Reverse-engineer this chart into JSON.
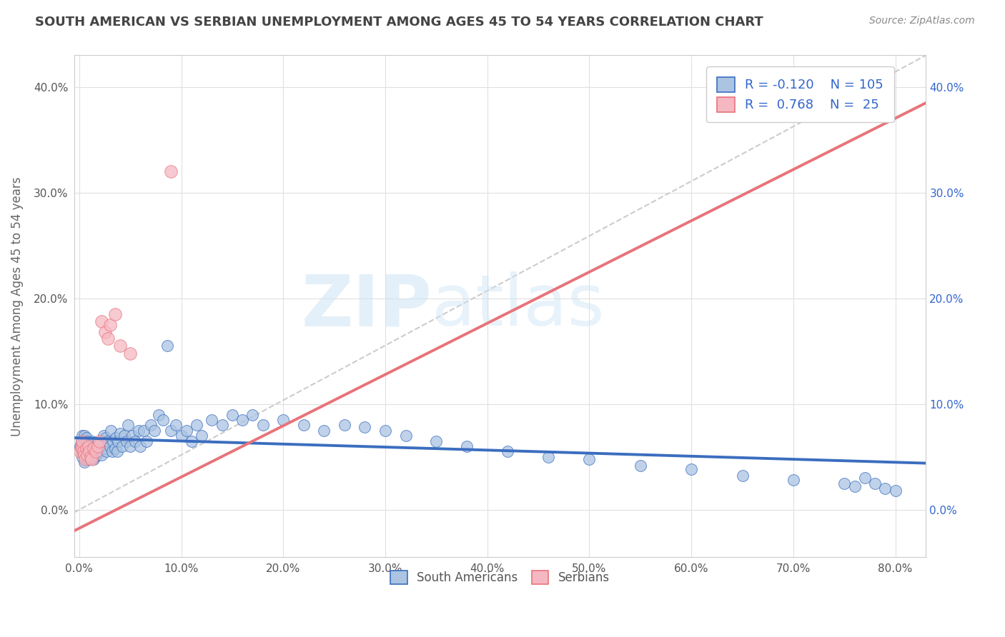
{
  "title": "SOUTH AMERICAN VS SERBIAN UNEMPLOYMENT AMONG AGES 45 TO 54 YEARS CORRELATION CHART",
  "source": "Source: ZipAtlas.com",
  "ylabel": "Unemployment Among Ages 45 to 54 years",
  "xlim": [
    -0.005,
    0.83
  ],
  "ylim": [
    -0.045,
    0.43
  ],
  "xticks": [
    0.0,
    0.1,
    0.2,
    0.3,
    0.4,
    0.5,
    0.6,
    0.7,
    0.8
  ],
  "xticklabels": [
    "0.0%",
    "10.0%",
    "20.0%",
    "30.0%",
    "40.0%",
    "50.0%",
    "60.0%",
    "70.0%",
    "80.0%"
  ],
  "yticks": [
    0.0,
    0.1,
    0.2,
    0.3,
    0.4
  ],
  "yticklabels": [
    "0.0%",
    "10.0%",
    "20.0%",
    "30.0%",
    "40.0%"
  ],
  "blue_R": -0.12,
  "blue_N": 105,
  "pink_R": 0.768,
  "pink_N": 25,
  "blue_color": "#aac4e2",
  "pink_color": "#f5b8c2",
  "blue_line_color": "#3b6dbf",
  "pink_line_color": "#e8737a",
  "ref_line_color": "#cccccc",
  "watermark_zip": "ZIP",
  "watermark_atlas": "atlas",
  "title_color": "#444444",
  "axis_label_color": "#666666",
  "legend_label_color": "#3366cc",
  "south_americans_x": [
    0.001,
    0.002,
    0.002,
    0.003,
    0.003,
    0.004,
    0.004,
    0.005,
    0.005,
    0.005,
    0.006,
    0.006,
    0.006,
    0.007,
    0.007,
    0.007,
    0.008,
    0.008,
    0.009,
    0.009,
    0.01,
    0.01,
    0.011,
    0.011,
    0.012,
    0.012,
    0.013,
    0.013,
    0.014,
    0.014,
    0.015,
    0.015,
    0.016,
    0.017,
    0.018,
    0.019,
    0.02,
    0.021,
    0.022,
    0.023,
    0.024,
    0.025,
    0.026,
    0.027,
    0.028,
    0.03,
    0.031,
    0.032,
    0.033,
    0.035,
    0.036,
    0.037,
    0.038,
    0.04,
    0.042,
    0.044,
    0.046,
    0.048,
    0.05,
    0.052,
    0.055,
    0.058,
    0.06,
    0.063,
    0.066,
    0.07,
    0.074,
    0.078,
    0.082,
    0.086,
    0.09,
    0.095,
    0.1,
    0.105,
    0.11,
    0.115,
    0.12,
    0.13,
    0.14,
    0.15,
    0.16,
    0.17,
    0.18,
    0.2,
    0.22,
    0.24,
    0.26,
    0.28,
    0.3,
    0.32,
    0.35,
    0.38,
    0.42,
    0.46,
    0.5,
    0.55,
    0.6,
    0.65,
    0.7,
    0.75,
    0.76,
    0.77,
    0.78,
    0.79,
    0.8
  ],
  "south_americans_y": [
    0.06,
    0.055,
    0.065,
    0.05,
    0.07,
    0.055,
    0.06,
    0.045,
    0.06,
    0.07,
    0.05,
    0.055,
    0.065,
    0.048,
    0.058,
    0.068,
    0.05,
    0.065,
    0.055,
    0.06,
    0.048,
    0.058,
    0.052,
    0.062,
    0.05,
    0.06,
    0.055,
    0.065,
    0.048,
    0.058,
    0.05,
    0.06,
    0.055,
    0.052,
    0.06,
    0.058,
    0.055,
    0.065,
    0.052,
    0.062,
    0.07,
    0.058,
    0.068,
    0.055,
    0.065,
    0.06,
    0.075,
    0.055,
    0.065,
    0.058,
    0.068,
    0.055,
    0.065,
    0.072,
    0.06,
    0.07,
    0.065,
    0.08,
    0.06,
    0.07,
    0.065,
    0.075,
    0.06,
    0.075,
    0.065,
    0.08,
    0.075,
    0.09,
    0.085,
    0.155,
    0.075,
    0.08,
    0.07,
    0.075,
    0.065,
    0.08,
    0.07,
    0.085,
    0.08,
    0.09,
    0.085,
    0.09,
    0.08,
    0.085,
    0.08,
    0.075,
    0.08,
    0.078,
    0.075,
    0.07,
    0.065,
    0.06,
    0.055,
    0.05,
    0.048,
    0.042,
    0.038,
    0.032,
    0.028,
    0.025,
    0.022,
    0.03,
    0.025,
    0.02,
    0.018
  ],
  "serbians_x": [
    0.001,
    0.002,
    0.003,
    0.003,
    0.004,
    0.005,
    0.006,
    0.007,
    0.008,
    0.009,
    0.01,
    0.011,
    0.012,
    0.014,
    0.016,
    0.018,
    0.02,
    0.022,
    0.025,
    0.028,
    0.03,
    0.035,
    0.04,
    0.05,
    0.09
  ],
  "serbians_y": [
    0.055,
    0.06,
    0.058,
    0.065,
    0.055,
    0.052,
    0.048,
    0.058,
    0.052,
    0.06,
    0.055,
    0.05,
    0.048,
    0.058,
    0.055,
    0.06,
    0.065,
    0.178,
    0.168,
    0.162,
    0.175,
    0.185,
    0.155,
    0.148,
    0.32
  ],
  "blue_trend_x": [
    -0.005,
    0.83
  ],
  "blue_trend_y": [
    0.068,
    0.044
  ],
  "pink_trend_x": [
    -0.005,
    0.83
  ],
  "pink_trend_y": [
    -0.02,
    0.385
  ]
}
